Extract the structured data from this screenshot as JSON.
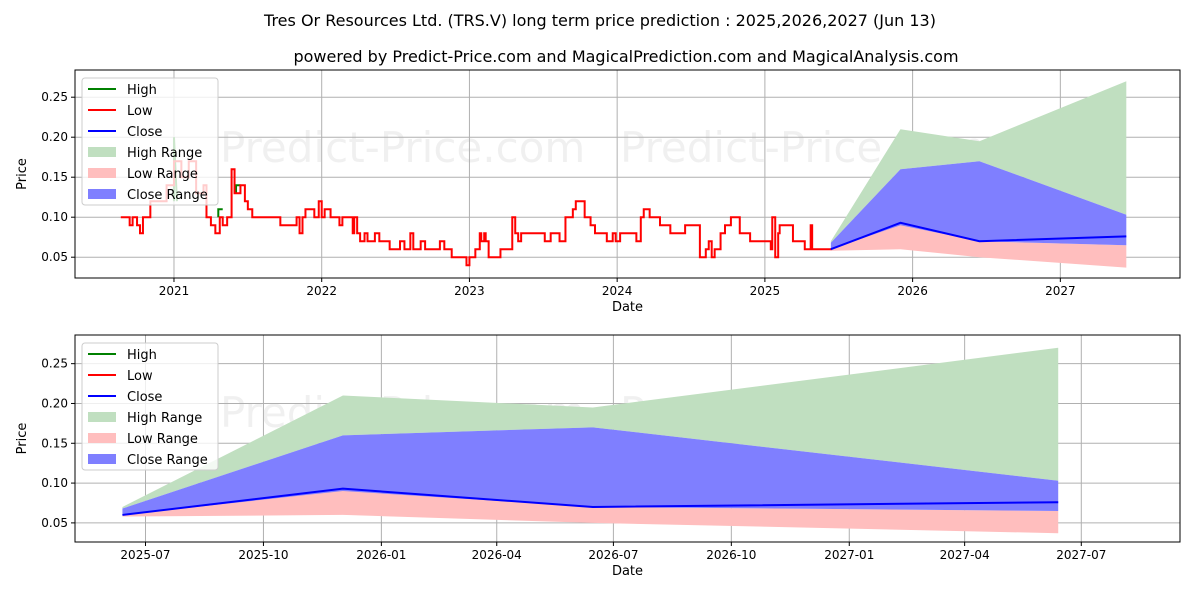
{
  "title": "Tres Or Resources Ltd. (TRS.V) long term price prediction : 2025,2026,2027 (Jun 13)",
  "subtitle": "powered by Predict-Price.com and MagicalPrediction.com and MagicalAnalysis.com",
  "watermark": "Predict-Price.com",
  "colors": {
    "high": "#008000",
    "low": "#ff0000",
    "close": "#0000ff",
    "high_range": "#c0dfc0",
    "low_range": "#ffbebe",
    "close_range": "#7f7fff"
  },
  "chart_data": [
    {
      "type": "line",
      "name": "long-term",
      "xlabel": "Date",
      "ylabel": "Price",
      "xlim": [
        2020.33,
        2027.81
      ],
      "ylim": [
        0.024,
        0.284
      ],
      "grid": true,
      "legend_placement": "top-left",
      "legend": [
        "High",
        "Low",
        "Close",
        "High Range",
        "Low Range",
        "Close Range"
      ],
      "xticks": [
        {
          "v": 2021,
          "label": "2021"
        },
        {
          "v": 2022,
          "label": "2022"
        },
        {
          "v": 2023,
          "label": "2023"
        },
        {
          "v": 2024,
          "label": "2024"
        },
        {
          "v": 2025,
          "label": "2025"
        },
        {
          "v": 2026,
          "label": "2026"
        },
        {
          "v": 2027,
          "label": "2027"
        }
      ],
      "yticks": [
        {
          "v": 0.05,
          "label": "0.05"
        },
        {
          "v": 0.1,
          "label": "0.10"
        },
        {
          "v": 0.15,
          "label": "0.15"
        },
        {
          "v": 0.2,
          "label": "0.20"
        },
        {
          "v": 0.25,
          "label": "0.25"
        }
      ],
      "history_low": [
        [
          2020.64,
          0.1
        ],
        [
          2020.7,
          0.09
        ],
        [
          2020.72,
          0.1
        ],
        [
          2020.75,
          0.09
        ],
        [
          2020.77,
          0.08
        ],
        [
          2020.79,
          0.1
        ],
        [
          2020.82,
          0.1
        ],
        [
          2020.84,
          0.12
        ],
        [
          2020.91,
          0.12
        ],
        [
          2020.95,
          0.14
        ],
        [
          2021.0,
          0.17
        ],
        [
          2021.05,
          0.15
        ],
        [
          2021.1,
          0.17
        ],
        [
          2021.15,
          0.13
        ],
        [
          2021.2,
          0.14
        ],
        [
          2021.22,
          0.1
        ],
        [
          2021.25,
          0.09
        ],
        [
          2021.28,
          0.08
        ],
        [
          2021.31,
          0.1
        ],
        [
          2021.33,
          0.09
        ],
        [
          2021.36,
          0.1
        ],
        [
          2021.39,
          0.16
        ],
        [
          2021.41,
          0.13
        ],
        [
          2021.45,
          0.14
        ],
        [
          2021.48,
          0.12
        ],
        [
          2021.5,
          0.11
        ],
        [
          2021.53,
          0.1
        ],
        [
          2021.72,
          0.09
        ],
        [
          2021.83,
          0.1
        ],
        [
          2021.85,
          0.08
        ],
        [
          2021.87,
          0.1
        ],
        [
          2021.89,
          0.11
        ],
        [
          2021.95,
          0.1
        ],
        [
          2021.98,
          0.12
        ],
        [
          2022.0,
          0.1
        ],
        [
          2022.02,
          0.11
        ],
        [
          2022.06,
          0.1
        ],
        [
          2022.12,
          0.09
        ],
        [
          2022.14,
          0.1
        ],
        [
          2022.16,
          0.1
        ],
        [
          2022.21,
          0.08
        ],
        [
          2022.22,
          0.1
        ],
        [
          2022.24,
          0.08
        ],
        [
          2022.26,
          0.07
        ],
        [
          2022.29,
          0.08
        ],
        [
          2022.31,
          0.07
        ],
        [
          2022.36,
          0.08
        ],
        [
          2022.39,
          0.07
        ],
        [
          2022.46,
          0.06
        ],
        [
          2022.53,
          0.07
        ],
        [
          2022.56,
          0.06
        ],
        [
          2022.6,
          0.08
        ],
        [
          2022.62,
          0.06
        ],
        [
          2022.67,
          0.07
        ],
        [
          2022.7,
          0.06
        ],
        [
          2022.8,
          0.07
        ],
        [
          2022.83,
          0.06
        ],
        [
          2022.88,
          0.05
        ],
        [
          2022.98,
          0.04
        ],
        [
          2023.0,
          0.05
        ],
        [
          2023.04,
          0.06
        ],
        [
          2023.07,
          0.08
        ],
        [
          2023.08,
          0.07
        ],
        [
          2023.1,
          0.08
        ],
        [
          2023.11,
          0.07
        ],
        [
          2023.13,
          0.05
        ],
        [
          2023.21,
          0.06
        ],
        [
          2023.29,
          0.1
        ],
        [
          2023.31,
          0.08
        ],
        [
          2023.33,
          0.07
        ],
        [
          2023.35,
          0.08
        ],
        [
          2023.51,
          0.07
        ],
        [
          2023.55,
          0.08
        ],
        [
          2023.61,
          0.07
        ],
        [
          2023.65,
          0.1
        ],
        [
          2023.68,
          0.1
        ],
        [
          2023.7,
          0.11
        ],
        [
          2023.72,
          0.12
        ],
        [
          2023.78,
          0.1
        ],
        [
          2023.82,
          0.09
        ],
        [
          2023.85,
          0.08
        ],
        [
          2023.93,
          0.07
        ],
        [
          2023.97,
          0.08
        ],
        [
          2023.99,
          0.07
        ],
        [
          2024.02,
          0.08
        ],
        [
          2024.13,
          0.07
        ],
        [
          2024.16,
          0.1
        ],
        [
          2024.18,
          0.11
        ],
        [
          2024.22,
          0.1
        ],
        [
          2024.29,
          0.09
        ],
        [
          2024.36,
          0.08
        ],
        [
          2024.46,
          0.09
        ],
        [
          2024.54,
          0.09
        ],
        [
          2024.56,
          0.05
        ],
        [
          2024.6,
          0.06
        ],
        [
          2024.62,
          0.07
        ],
        [
          2024.64,
          0.05
        ],
        [
          2024.66,
          0.06
        ],
        [
          2024.7,
          0.08
        ],
        [
          2024.73,
          0.09
        ],
        [
          2024.77,
          0.1
        ],
        [
          2024.82,
          0.1
        ],
        [
          2024.83,
          0.08
        ],
        [
          2024.9,
          0.07
        ],
        [
          2025.0,
          0.07
        ],
        [
          2025.04,
          0.06
        ],
        [
          2025.05,
          0.1
        ],
        [
          2025.07,
          0.05
        ],
        [
          2025.09,
          0.08
        ],
        [
          2025.1,
          0.09
        ],
        [
          2025.19,
          0.07
        ],
        [
          2025.24,
          0.07
        ],
        [
          2025.27,
          0.06
        ],
        [
          2025.31,
          0.09
        ],
        [
          2025.32,
          0.06
        ],
        [
          2025.45,
          0.06
        ]
      ],
      "history_high": [
        [
          [
            2021.0,
            0.12
          ],
          [
            2021.0,
            0.2
          ],
          [
            2021.02,
            0.12
          ]
        ],
        [
          [
            2021.3,
            0.1
          ],
          [
            2021.3,
            0.11
          ],
          [
            2021.33,
            0.11
          ]
        ],
        [
          [
            2021.42,
            0.13
          ],
          [
            2021.42,
            0.14
          ],
          [
            2021.45,
            0.14
          ]
        ]
      ]
    },
    {
      "type": "line",
      "name": "forecast",
      "xlabel": "Date",
      "ylabel": "Price",
      "xlim": [
        "2025-05-07",
        "2027-09-16"
      ],
      "ylim": [
        0.026,
        0.286
      ],
      "grid": true,
      "legend_placement": "top-left",
      "legend": [
        "High",
        "Low",
        "Close",
        "High Range",
        "Low Range",
        "Close Range"
      ],
      "xticks": [
        {
          "v": "2025-07-01",
          "label": "2025-07"
        },
        {
          "v": "2025-10-01",
          "label": "2025-10"
        },
        {
          "v": "2026-01-01",
          "label": "2026-01"
        },
        {
          "v": "2026-04-01",
          "label": "2026-04"
        },
        {
          "v": "2026-07-01",
          "label": "2026-07"
        },
        {
          "v": "2026-10-01",
          "label": "2026-10"
        },
        {
          "v": "2027-01-01",
          "label": "2027-01"
        },
        {
          "v": "2027-04-01",
          "label": "2027-04"
        },
        {
          "v": "2027-07-01",
          "label": "2027-07"
        }
      ],
      "yticks": [
        {
          "v": 0.05,
          "label": "0.05"
        },
        {
          "v": 0.1,
          "label": "0.10"
        },
        {
          "v": 0.15,
          "label": "0.15"
        },
        {
          "v": 0.2,
          "label": "0.20"
        },
        {
          "v": 0.25,
          "label": "0.25"
        }
      ]
    }
  ],
  "forecast": {
    "dates": [
      "2025-06-13",
      "2025-12-02",
      "2026-06-15",
      "2027-06-13"
    ],
    "close": [
      0.06,
      0.093,
      0.07,
      0.076
    ],
    "high_range": {
      "low": [
        0.068,
        0.16,
        0.17,
        0.103
      ],
      "high": [
        0.07,
        0.21,
        0.195,
        0.27
      ]
    },
    "close_range": {
      "low": [
        0.06,
        0.09,
        0.07,
        0.065
      ],
      "high": [
        0.068,
        0.16,
        0.17,
        0.103
      ]
    },
    "low_range": {
      "low": [
        0.058,
        0.06,
        0.05,
        0.037
      ],
      "high": [
        0.06,
        0.093,
        0.07,
        0.065
      ]
    }
  }
}
